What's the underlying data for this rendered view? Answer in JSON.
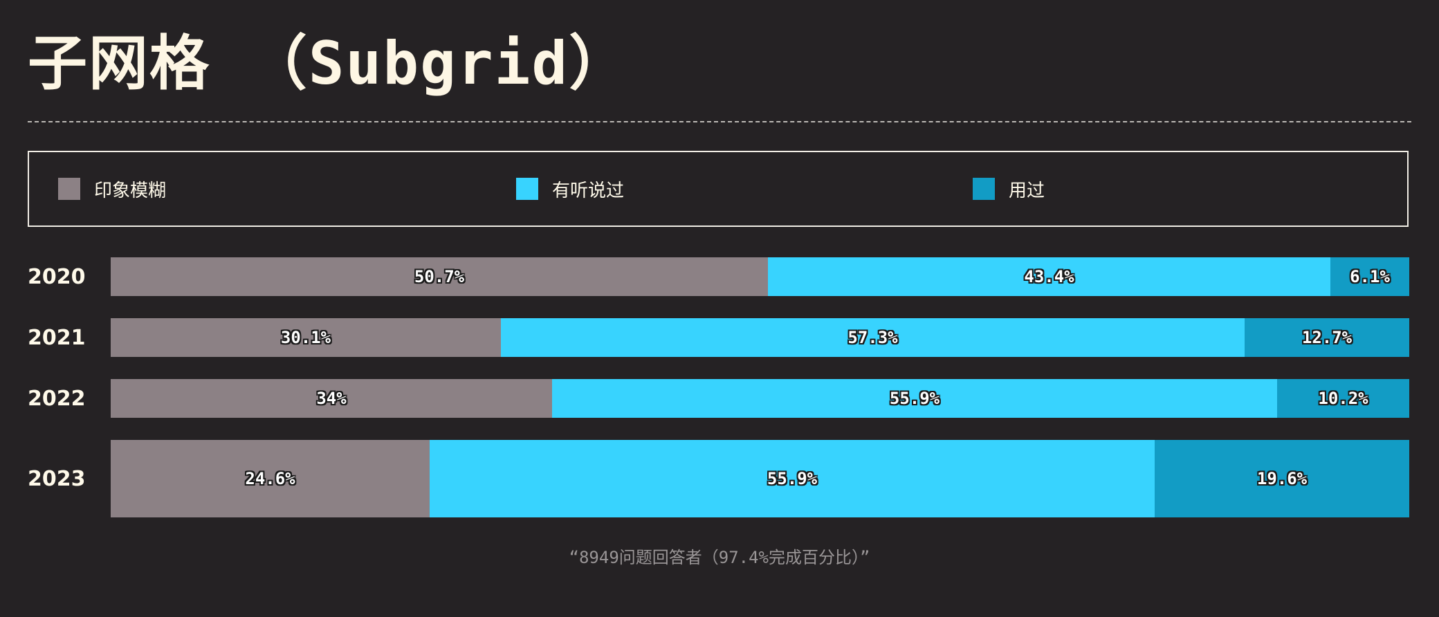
{
  "title": "子网格 （Subgrid）",
  "caption": "“8949问题回答者（97.4%完成百分比）”",
  "colors": {
    "background": "#252224",
    "vague": "#8c8185",
    "heard": "#38d3fe",
    "used": "#129cc5"
  },
  "legend": [
    {
      "label": "印象模糊",
      "color": "#8c8185"
    },
    {
      "label": "有听说过",
      "color": "#38d3fe"
    },
    {
      "label": "用过",
      "color": "#129cc5"
    }
  ],
  "chart_data": {
    "type": "bar",
    "orientation": "horizontal",
    "stacked": true,
    "categories": [
      "2020",
      "2021",
      "2022",
      "2023"
    ],
    "series": [
      {
        "name": "印象模糊",
        "values": [
          50.7,
          30.1,
          34,
          24.6
        ],
        "labels": [
          "50.7%",
          "30.1%",
          "34%",
          "24.6%"
        ]
      },
      {
        "name": "有听说过",
        "values": [
          43.4,
          57.3,
          55.9,
          55.9
        ],
        "labels": [
          "43.4%",
          "57.3%",
          "55.9%",
          "55.9%"
        ]
      },
      {
        "name": "用过",
        "values": [
          6.1,
          12.7,
          10.2,
          19.6
        ],
        "labels": [
          "6.1%",
          "12.7%",
          "10.2%",
          "19.6%"
        ]
      }
    ],
    "xlim": [
      0,
      100
    ],
    "grid": false,
    "legend_position": "top"
  }
}
